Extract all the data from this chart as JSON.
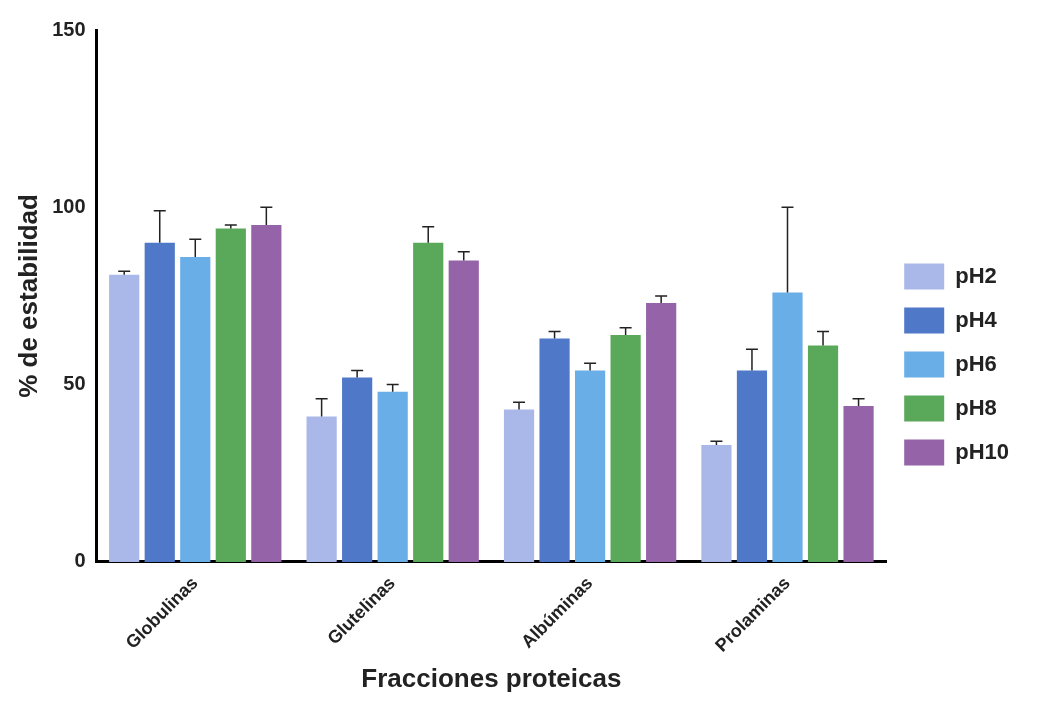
{
  "chart_data": {
    "type": "bar",
    "xlabel": "Fracciones proteicas",
    "ylabel": "% de estabilidad",
    "categories": [
      "Globulinas",
      "Glutelinas",
      "Albúminas",
      "Prolaminas"
    ],
    "series": [
      {
        "name": "pH2",
        "color": "#a9b8e8",
        "values": [
          81,
          41,
          43,
          33
        ],
        "errors": [
          [
            81,
            82
          ],
          [
            41,
            46
          ],
          [
            43,
            45
          ],
          [
            33,
            34
          ]
        ]
      },
      {
        "name": "pH4",
        "color": "#4f79c8",
        "values": [
          90,
          52,
          63,
          54
        ],
        "errors": [
          [
            90,
            99
          ],
          [
            52,
            54
          ],
          [
            63,
            65
          ],
          [
            54,
            60
          ]
        ]
      },
      {
        "name": "pH6",
        "color": "#6aaee8",
        "values": [
          86,
          48,
          54,
          76
        ],
        "errors": [
          [
            86,
            91
          ],
          [
            48,
            50
          ],
          [
            54,
            56
          ],
          [
            76,
            100
          ]
        ]
      },
      {
        "name": "pH8",
        "color": "#5aa85a",
        "values": [
          94,
          90,
          64,
          61
        ],
        "errors": [
          [
            94,
            95
          ],
          [
            90,
            94.5
          ],
          [
            64,
            66
          ],
          [
            61,
            65
          ]
        ]
      },
      {
        "name": "pH10",
        "color": "#9563a8",
        "values": [
          95,
          85,
          73,
          44
        ],
        "errors": [
          [
            95,
            100
          ],
          [
            85,
            87.5
          ],
          [
            73,
            75
          ],
          [
            44,
            46
          ]
        ]
      }
    ],
    "ylim": [
      0,
      150
    ],
    "yticks": [
      0,
      50,
      100,
      150
    ],
    "grid": false,
    "legend": "right"
  }
}
